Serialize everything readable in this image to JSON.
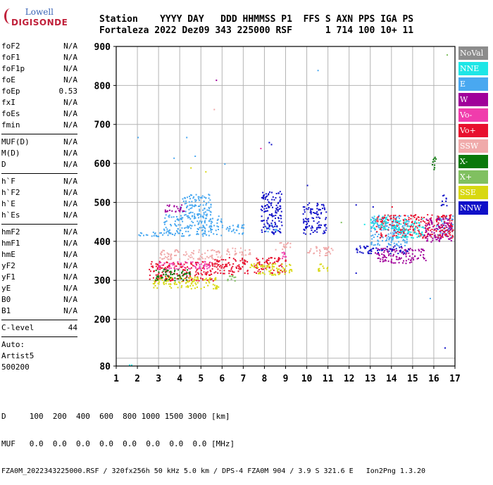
{
  "logo": {
    "line1": "Lowell",
    "line2": "DIGISONDE"
  },
  "header": {
    "labels": "Station    YYYY DAY   DDD HHMMSS P1  FFS S AXN PPS IGA PS",
    "values": "Fortaleza 2022 Dez09 343 225000 RSF      1 714 100 10+ 11"
  },
  "params": {
    "group1": [
      [
        "foF2",
        "N/A"
      ],
      [
        "foF1",
        "N/A"
      ],
      [
        "foF1p",
        "N/A"
      ],
      [
        "foE",
        "N/A"
      ],
      [
        "foEp",
        "0.53"
      ],
      [
        "fxI",
        "N/A"
      ],
      [
        "foEs",
        "N/A"
      ],
      [
        "fmin",
        "N/A"
      ]
    ],
    "group2": [
      [
        "MUF(D)",
        "N/A"
      ],
      [
        "M(D)",
        "N/A"
      ],
      [
        "D",
        "N/A"
      ]
    ],
    "group3": [
      [
        "h`F",
        "N/A"
      ],
      [
        "h`F2",
        "N/A"
      ],
      [
        "h`E",
        "N/A"
      ],
      [
        "h`Es",
        "N/A"
      ]
    ],
    "group4": [
      [
        "hmF2",
        "N/A"
      ],
      [
        "hmF1",
        "N/A"
      ],
      [
        "hmE",
        "N/A"
      ],
      [
        "yF2",
        "N/A"
      ],
      [
        "yF1",
        "N/A"
      ],
      [
        "yE",
        "N/A"
      ],
      [
        "B0",
        "N/A"
      ],
      [
        "B1",
        "N/A"
      ]
    ],
    "clevel": [
      "C-level",
      "44"
    ],
    "auto": [
      "Auto:",
      "Artist5",
      "500200"
    ]
  },
  "legend": [
    {
      "label": "NoVal",
      "color": "#8c8c8c"
    },
    {
      "label": "NNE",
      "color": "#1ee6e6"
    },
    {
      "label": "E",
      "color": "#49a8f0"
    },
    {
      "label": "W",
      "color": "#a0009a"
    },
    {
      "label": "Vo-",
      "color": "#f03cac"
    },
    {
      "label": "Vo+",
      "color": "#e8102e"
    },
    {
      "label": "SSW",
      "color": "#f0aaaa"
    },
    {
      "label": "X-",
      "color": "#0a780a"
    },
    {
      "label": "X+",
      "color": "#80c060"
    },
    {
      "label": "SSE",
      "color": "#d8d810"
    },
    {
      "label": "NNW",
      "color": "#1010c8"
    }
  ],
  "footer": {
    "line1": "D     100  200  400  600  800 1000 1500 3000 [km]",
    "line2": "MUF   0.0  0.0  0.0  0.0  0.0  0.0  0.0  0.0 [MHz]",
    "line3": "FZA0M_2022343225000.RSF / 320fx256h 50 kHz 5.0 km / DPS-4 FZA0M 904 / 3.9 S 321.6 E   Ion2Png 1.3.20"
  },
  "chart_data": {
    "type": "scatter",
    "title": "",
    "xlabel": "",
    "ylabel": "",
    "xlim": [
      1,
      17
    ],
    "ylim": [
      80,
      900
    ],
    "x_ticks": [
      1,
      2,
      3,
      4,
      5,
      6,
      7,
      8,
      9,
      10,
      11,
      12,
      13,
      14,
      15,
      16,
      17
    ],
    "y_ticks": [
      80,
      200,
      300,
      400,
      500,
      600,
      700,
      800,
      900
    ],
    "grid": true,
    "legend_position": "right",
    "series": [
      {
        "name": "E",
        "color": "#49a8f0",
        "clusters": [
          {
            "x": [
              1.9,
              3.2
            ],
            "y": [
              412,
              425
            ]
          },
          {
            "x": [
              3.2,
              6.0
            ],
            "y": [
              415,
              470
            ]
          },
          {
            "x": [
              4.0,
              5.5
            ],
            "y": [
              470,
              522
            ]
          },
          {
            "x": [
              6.1,
              7.0
            ],
            "y": [
              420,
              445
            ]
          },
          {
            "x": [
              8.0,
              8.6
            ],
            "y": [
              425,
              445
            ]
          },
          {
            "x": [
              13.0,
              14.8
            ],
            "y": [
              390,
              470
            ]
          },
          {
            "x": [
              16.1,
              16.9
            ],
            "y": [
              410,
              470
            ]
          }
        ]
      },
      {
        "name": "SSW",
        "color": "#f0aaaa",
        "clusters": [
          {
            "x": [
              3.0,
              6.0
            ],
            "y": [
              355,
              380
            ]
          },
          {
            "x": [
              6.1,
              7.3
            ],
            "y": [
              365,
              385
            ]
          },
          {
            "x": [
              10.0,
              11.2
            ],
            "y": [
              365,
              390
            ]
          },
          {
            "x": [
              8.5,
              9.2
            ],
            "y": [
              380,
              400
            ]
          }
        ]
      },
      {
        "name": "Vo+",
        "color": "#e8102e",
        "clusters": [
          {
            "x": [
              2.5,
              5.6
            ],
            "y": [
              300,
              350
            ]
          },
          {
            "x": [
              5.6,
              7.2
            ],
            "y": [
              315,
              360
            ]
          },
          {
            "x": [
              7.5,
              9.0
            ],
            "y": [
              320,
              360
            ]
          },
          {
            "x": [
              13.2,
              16.9
            ],
            "y": [
              410,
              470
            ]
          }
        ]
      },
      {
        "name": "SSE",
        "color": "#d8d810",
        "clusters": [
          {
            "x": [
              2.7,
              5.8
            ],
            "y": [
              280,
              310
            ]
          },
          {
            "x": [
              7.3,
              9.3
            ],
            "y": [
              315,
              345
            ]
          },
          {
            "x": [
              10.5,
              11.0
            ],
            "y": [
              325,
              345
            ]
          }
        ]
      },
      {
        "name": "W",
        "color": "#a0009a",
        "clusters": [
          {
            "x": [
              3.2,
              4.2
            ],
            "y": [
              475,
              495
            ]
          },
          {
            "x": [
              13.2,
              15.6
            ],
            "y": [
              345,
              385
            ]
          },
          {
            "x": [
              15.5,
              16.8
            ],
            "y": [
              400,
              460
            ]
          }
        ]
      },
      {
        "name": "NNW",
        "color": "#1010c8",
        "clusters": [
          {
            "x": [
              7.8,
              8.8
            ],
            "y": [
              420,
              530
            ]
          },
          {
            "x": [
              9.8,
              10.9
            ],
            "y": [
              420,
              500
            ]
          },
          {
            "x": [
              12.3,
              14.8
            ],
            "y": [
              370,
              390
            ]
          },
          {
            "x": [
              16.3,
              16.6
            ],
            "y": [
              490,
              520
            ]
          }
        ]
      },
      {
        "name": "NNE",
        "color": "#1ee6e6",
        "clusters": [
          {
            "x": [
              13.0,
              13.8
            ],
            "y": [
              430,
              470
            ]
          },
          {
            "x": [
              14.0,
              15.5
            ],
            "y": [
              410,
              460
            ]
          }
        ]
      },
      {
        "name": "X-",
        "color": "#0a780a",
        "clusters": [
          {
            "x": [
              2.8,
              4.5
            ],
            "y": [
              300,
              330
            ]
          },
          {
            "x": [
              15.9,
              16.1
            ],
            "y": [
              580,
              620
            ]
          }
        ]
      },
      {
        "name": "X+",
        "color": "#80c060",
        "clusters": [
          {
            "x": [
              6.2,
              6.6
            ],
            "y": [
              300,
              320
            ]
          }
        ]
      },
      {
        "name": "Vo-",
        "color": "#f03cac",
        "clusters": [
          {
            "x": [
              2.9,
              5.5
            ],
            "y": [
              330,
              350
            ]
          },
          {
            "x": [
              8.8,
              9.0
            ],
            "y": [
              355,
              375
            ]
          }
        ]
      }
    ]
  }
}
